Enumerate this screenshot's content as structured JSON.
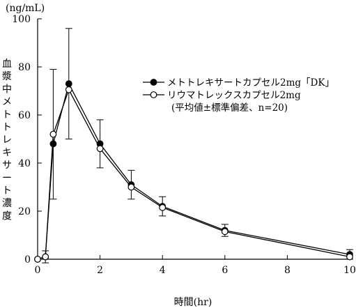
{
  "chart_data": {
    "type": "line",
    "ylabel": "血漿中メトトレキサート濃度",
    "yunit": "(ng/mL)",
    "xlabel": "時間(hr)",
    "xlim": [
      0,
      10
    ],
    "ylim": [
      0,
      100
    ],
    "xticks": [
      0,
      2,
      4,
      6,
      8,
      10
    ],
    "yticks": [
      0,
      20,
      40,
      60,
      80,
      100
    ],
    "grid": false,
    "legend_position": "right",
    "legend_note": "(平均値±標準偏差、n=20)",
    "series": [
      {
        "name": "メトトレキサートカプセル2mg「DK」",
        "marker": "filled-circle",
        "x": [
          0,
          0.25,
          0.5,
          1,
          2,
          3,
          4,
          6,
          10
        ],
        "y": [
          0,
          1,
          48,
          73,
          48,
          31,
          22,
          12,
          2
        ],
        "error": [
          0,
          0,
          0,
          23,
          10,
          6,
          4,
          2.5,
          2
        ]
      },
      {
        "name": "リウマトレックスカプセル2mg",
        "marker": "open-circle",
        "x": [
          0,
          0.25,
          0.5,
          1,
          2,
          3,
          4,
          6,
          10
        ],
        "y": [
          0,
          1,
          52,
          70.5,
          46,
          30,
          21.5,
          11.5,
          1
        ],
        "error": [
          0,
          2.5,
          27,
          0,
          0,
          0,
          0,
          0,
          0
        ]
      }
    ]
  }
}
